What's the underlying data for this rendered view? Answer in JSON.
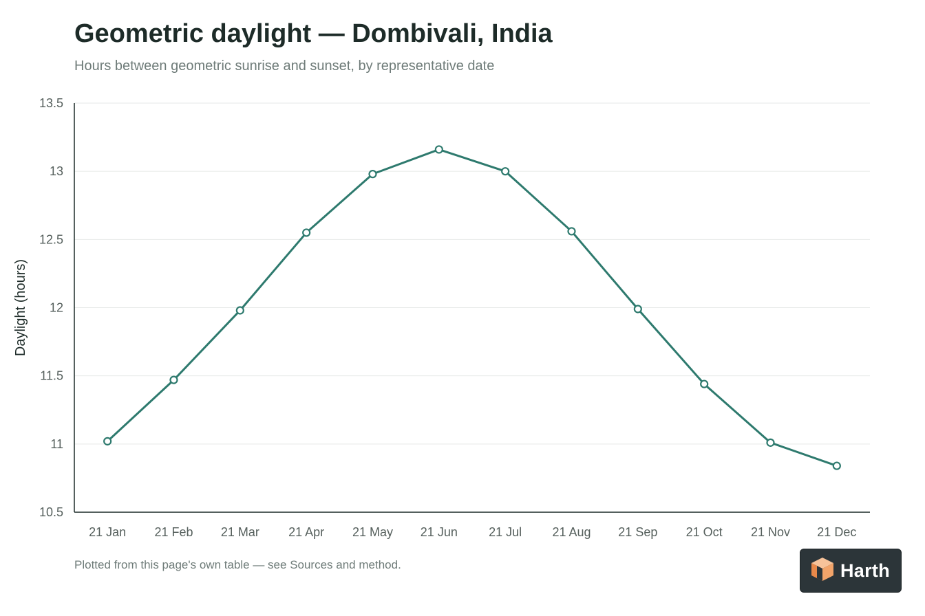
{
  "header": {
    "title": "Geometric daylight — Dombivali, India",
    "subtitle": "Hours between geometric sunrise and sunset, by representative date"
  },
  "footnote": "Plotted from this page's own table — see Sources and method.",
  "logo": {
    "text": "Harth",
    "icon": "cube-icon"
  },
  "colors": {
    "line": "#2e7a6e",
    "grid": "#e6e9e8",
    "axis": "#1d2b28"
  },
  "chart_data": {
    "type": "line",
    "title": "Geometric daylight — Dombivali, India",
    "subtitle": "Hours between geometric sunrise and sunset, by representative date",
    "xlabel": "",
    "ylabel": "Daylight (hours)",
    "categories": [
      "21 Jan",
      "21 Feb",
      "21 Mar",
      "21 Apr",
      "21 May",
      "21 Jun",
      "21 Jul",
      "21 Aug",
      "21 Sep",
      "21 Oct",
      "21 Nov",
      "21 Dec"
    ],
    "series": [
      {
        "values": [
          11.02,
          11.47,
          11.98,
          12.55,
          12.98,
          13.16,
          13.0,
          12.56,
          11.99,
          11.44,
          11.01,
          10.84
        ]
      }
    ],
    "yticks": [
      "10.5",
      "11",
      "11.5",
      "12",
      "12.5",
      "13",
      "13.5"
    ],
    "ylim": [
      10.5,
      13.5
    ],
    "grid": true,
    "legend": "none"
  }
}
